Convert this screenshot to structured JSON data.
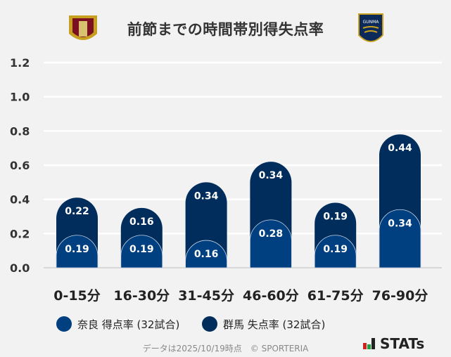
{
  "title": "前節までの時間帯別得失点率",
  "logos": {
    "left": "奈良クラブ エンブレム",
    "right": "GUNMA"
  },
  "colors": {
    "nara": "#003f80",
    "gunma": "#002d5c",
    "grid": "#ffffff",
    "background": "#f2f2f2"
  },
  "chart_data": {
    "type": "bar",
    "stacked": true,
    "categories": [
      "0-15分",
      "16-30分",
      "31-45分",
      "46-60分",
      "61-75分",
      "76-90分"
    ],
    "series": [
      {
        "name": "奈良 得点率 (32試合)",
        "values": [
          0.19,
          0.19,
          0.16,
          0.28,
          0.19,
          0.34
        ]
      },
      {
        "name": "群馬 失点率 (32試合)",
        "values": [
          0.22,
          0.16,
          0.34,
          0.34,
          0.19,
          0.44
        ]
      }
    ],
    "yticks": [
      "0.0",
      "0.2",
      "0.4",
      "0.6",
      "0.8",
      "1.0",
      "1.2"
    ],
    "ylim": [
      0,
      1.2
    ],
    "grid": true,
    "legend": "bottom-left"
  },
  "footer": "データは2025/10/19時点　© SPORTERIA",
  "brand": "STATs"
}
